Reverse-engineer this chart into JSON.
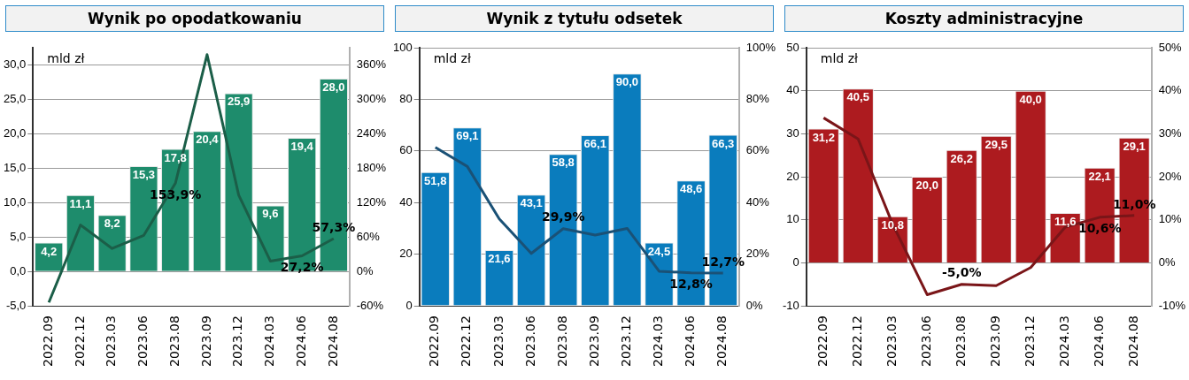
{
  "chart_data": [
    {
      "type": "bar",
      "title": "Wynik po opodatkowaniu",
      "annotations": [
        "mld zł"
      ],
      "categories": [
        "2022.09",
        "2022.12",
        "2023.03",
        "2023.06",
        "2023.08",
        "2023.09",
        "2023.12",
        "2024.03",
        "2024.06",
        "2024.08"
      ],
      "series": [
        {
          "type": "bar",
          "color": "#1e8c6c",
          "values": [
            4.2,
            11.1,
            8.2,
            15.3,
            17.8,
            20.4,
            25.9,
            9.6,
            19.4,
            28.0
          ],
          "value_labels": [
            "4,2",
            "11,1",
            "8,2",
            "15,3",
            "17,8",
            "20,4",
            "25,9",
            "9,6",
            "19,4",
            "28,0"
          ]
        },
        {
          "type": "line",
          "axis": "y2",
          "color": "#1b5e48",
          "values": [
            -54,
            81,
            40,
            63,
            153.9,
            378,
            133,
            18,
            27.2,
            57.3
          ],
          "value_labels": [
            null,
            null,
            null,
            null,
            "153,9%",
            null,
            null,
            null,
            "27,2%",
            "57,3%"
          ]
        }
      ],
      "ylim": [
        -5,
        32.5
      ],
      "yticks": [
        {
          "value": -5,
          "label": "-5,0"
        },
        {
          "value": 0,
          "label": "0,0"
        },
        {
          "value": 5,
          "label": "5,0"
        },
        {
          "value": 10,
          "label": "10,0"
        },
        {
          "value": 15,
          "label": "15,0"
        },
        {
          "value": 20,
          "label": "20,0"
        },
        {
          "value": 25,
          "label": "25,0"
        },
        {
          "value": 30,
          "label": "30,0"
        }
      ],
      "y2lim": [
        -60,
        390
      ],
      "y2ticks": [
        {
          "value": -60,
          "label": "-60%"
        },
        {
          "value": 0,
          "label": "0%"
        },
        {
          "value": 60,
          "label": "60%"
        },
        {
          "value": 120,
          "label": "120%"
        },
        {
          "value": 180,
          "label": "180%"
        },
        {
          "value": 240,
          "label": "240%"
        },
        {
          "value": 300,
          "label": "300%"
        },
        {
          "value": 360,
          "label": "360%"
        }
      ],
      "grid": "y",
      "legend": false,
      "marker": "none"
    },
    {
      "type": "bar",
      "title": "Wynik z tytułu odsetek",
      "annotations": [
        "mld zł"
      ],
      "categories": [
        "2022.09",
        "2022.12",
        "2023.03",
        "2023.06",
        "2023.08",
        "2023.09",
        "2023.12",
        "2024.03",
        "2024.06",
        "2024.08"
      ],
      "series": [
        {
          "type": "bar",
          "color": "#0a7cbd",
          "values": [
            51.8,
            69.1,
            21.6,
            43.1,
            58.8,
            66.1,
            90.0,
            24.5,
            48.6,
            66.3
          ],
          "value_labels": [
            "51,8",
            "69,1",
            "21,6",
            "43,1",
            "58,8",
            "66,1",
            "90,0",
            "24,5",
            "48,6",
            "66,3"
          ]
        },
        {
          "type": "line",
          "axis": "y2",
          "color": "#1a5176",
          "values": [
            61.4,
            54,
            33.7,
            20.3,
            29.9,
            27.4,
            30,
            13.4,
            12.8,
            12.7
          ],
          "value_labels": [
            null,
            null,
            null,
            null,
            "29,9%",
            null,
            null,
            null,
            "12,8%",
            "12,7%"
          ]
        }
      ],
      "ylim": [
        0,
        100
      ],
      "yticks": [
        0,
        20,
        40,
        60,
        80,
        100
      ],
      "y2lim": [
        0,
        100
      ],
      "y2ticks": [
        {
          "value": 0,
          "label": "0%"
        },
        {
          "value": 20,
          "label": "20%"
        },
        {
          "value": 40,
          "label": "40%"
        },
        {
          "value": 60,
          "label": "60%"
        },
        {
          "value": 80,
          "label": "80%"
        },
        {
          "value": 100,
          "label": "100%"
        }
      ],
      "grid": "y",
      "legend": false,
      "marker": "none"
    },
    {
      "type": "bar",
      "title": "Koszty administracyjne",
      "annotations": [
        "mld zł"
      ],
      "categories": [
        "2022.09",
        "2022.12",
        "2023.03",
        "2023.06",
        "2023.08",
        "2023.09",
        "2023.12",
        "2024.03",
        "2024.06",
        "2024.08"
      ],
      "series": [
        {
          "type": "bar",
          "color": "#ad1b1f",
          "values": [
            31.2,
            40.5,
            10.8,
            20.0,
            26.2,
            29.5,
            40.0,
            11.6,
            22.1,
            29.1
          ],
          "value_labels": [
            "31,2",
            "40,5",
            "10,8",
            "20,0",
            "26,2",
            "29,5",
            "40,0",
            "11,6",
            "22,1",
            "29,1"
          ]
        },
        {
          "type": "line",
          "axis": "y2",
          "color": "#7a1518",
          "values": [
            33.7,
            28.8,
            9.0,
            -7.4,
            -5.0,
            -5.3,
            -1.1,
            8.3,
            10.6,
            11.0
          ],
          "value_labels": [
            null,
            null,
            null,
            null,
            "-5,0%",
            null,
            null,
            null,
            "10,6%",
            "11,0%"
          ]
        }
      ],
      "ylim": [
        -10,
        50
      ],
      "yticks": [
        -10,
        0,
        10,
        20,
        30,
        40,
        50
      ],
      "y2lim": [
        -10,
        50
      ],
      "y2ticks": [
        {
          "value": -10,
          "label": "-10%"
        },
        {
          "value": 0,
          "label": "0%"
        },
        {
          "value": 10,
          "label": "10%"
        },
        {
          "value": 20,
          "label": "20%"
        },
        {
          "value": 30,
          "label": "30%"
        },
        {
          "value": 40,
          "label": "40%"
        },
        {
          "value": 50,
          "label": "50%"
        }
      ],
      "grid": "y",
      "legend": false,
      "marker": "none"
    }
  ]
}
